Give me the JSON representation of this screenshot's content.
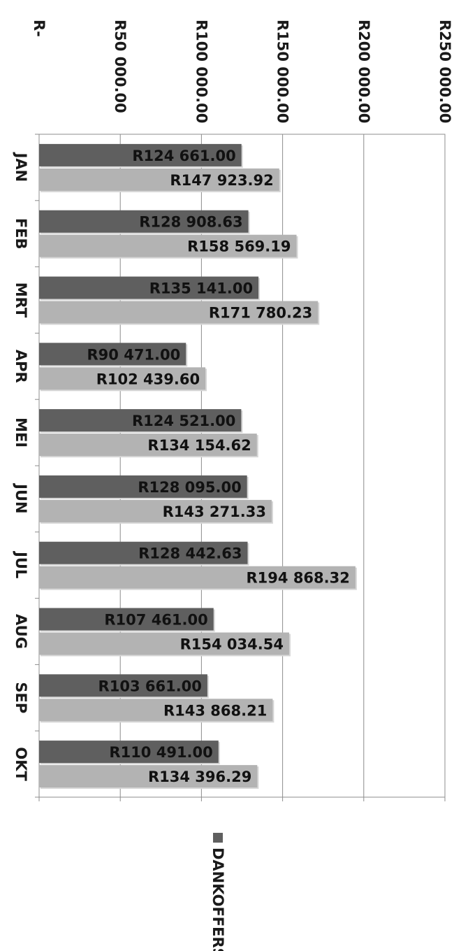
{
  "chart_data": {
    "type": "bar",
    "orientation": "horizontal",
    "categories": [
      "JAN",
      "FEB",
      "MRT",
      "APR",
      "MEI",
      "JUN",
      "JUL",
      "AUG",
      "SEP",
      "OKT"
    ],
    "series": [
      {
        "name": "DANKOFFERS",
        "color": "#5f5f5f",
        "values": [
          124661.0,
          128908.63,
          135141.0,
          90471.0,
          124521.0,
          128095.0,
          128442.63,
          107461.0,
          103661.0,
          110491.0
        ],
        "labels": [
          "R124 661.00",
          "R128 908.63",
          "R135 141.00",
          "R90 471.00",
          "R124 521.00",
          "R128 095.00",
          "R128 442.63",
          "R107 461.00",
          "R103 661.00",
          "R110 491.00"
        ]
      },
      {
        "color": "#b3b3b3",
        "values": [
          147923.92,
          158569.19,
          171780.23,
          102439.6,
          134154.62,
          143271.33,
          194868.32,
          154034.54,
          143868.21,
          134396.29
        ],
        "labels": [
          "R147 923.92",
          "R158 569.19",
          "R171 780.23",
          "R102 439.60",
          "R134 154.62",
          "R143 271.33",
          "R194 868.32",
          "R154 034.54",
          "R143 868.21",
          "R134 396.29"
        ]
      }
    ],
    "value_axis": {
      "min": 0,
      "max": 250000,
      "step": 50000,
      "tick_labels": [
        "R-",
        "R50 000.00",
        "R100 000.00",
        "R150 000.00",
        "R200 000.00",
        "R250 000.00"
      ]
    },
    "grid": true,
    "legend": {
      "position": "bottom",
      "entries": [
        "DANKOFFERS"
      ]
    }
  }
}
